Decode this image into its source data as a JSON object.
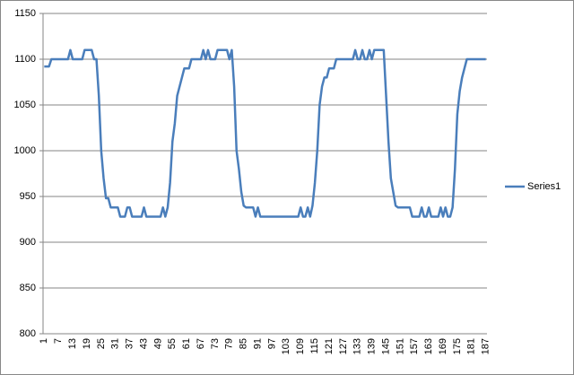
{
  "chart_data": {
    "type": "line",
    "categories": [
      1,
      null,
      null,
      null,
      null,
      null,
      7,
      null,
      null,
      null,
      null,
      null,
      13,
      null,
      null,
      null,
      null,
      null,
      19,
      null,
      null,
      null,
      null,
      null,
      25,
      null,
      null,
      null,
      null,
      null,
      31,
      null,
      null,
      null,
      null,
      null,
      37,
      null,
      null,
      null,
      null,
      null,
      43,
      null,
      null,
      null,
      null,
      null,
      49,
      null,
      null,
      null,
      null,
      null,
      55,
      null,
      null,
      null,
      null,
      null,
      61,
      null,
      null,
      null,
      null,
      null,
      67,
      null,
      null,
      null,
      null,
      null,
      73,
      null,
      null,
      null,
      null,
      null,
      79,
      null,
      null,
      null,
      null,
      null,
      85,
      null,
      null,
      null,
      null,
      null,
      91,
      null,
      null,
      null,
      null,
      null,
      97,
      null,
      null,
      null,
      null,
      null,
      103,
      null,
      null,
      null,
      null,
      null,
      109,
      null,
      null,
      null,
      null,
      null,
      115,
      null,
      null,
      null,
      null,
      null,
      121,
      null,
      null,
      null,
      null,
      null,
      127,
      null,
      null,
      null,
      null,
      null,
      133,
      null,
      null,
      null,
      null,
      null,
      139,
      null,
      null,
      null,
      null,
      null,
      145,
      null,
      null,
      null,
      null,
      null,
      151,
      null,
      null,
      null,
      null,
      null,
      157,
      null,
      null,
      null,
      null,
      null,
      163,
      null,
      null,
      null,
      null,
      null,
      169,
      null,
      null,
      null,
      null,
      null,
      175,
      null,
      null,
      null,
      null,
      null,
      181,
      null,
      null,
      null,
      null,
      null,
      187
    ],
    "series": [
      {
        "name": "Series1",
        "color": "#4a7ebb",
        "values": [
          1092,
          1092,
          1092,
          1100,
          1100,
          1100,
          1100,
          1100,
          1100,
          1100,
          1100,
          1110,
          1100,
          1100,
          1100,
          1100,
          1100,
          1110,
          1110,
          1110,
          1110,
          1100,
          1100,
          1060,
          1000,
          970,
          948,
          948,
          938,
          938,
          938,
          938,
          928,
          928,
          928,
          938,
          938,
          928,
          928,
          928,
          928,
          928,
          938,
          928,
          928,
          928,
          928,
          928,
          928,
          928,
          938,
          928,
          938,
          965,
          1010,
          1030,
          1060,
          1070,
          1080,
          1090,
          1090,
          1090,
          1100,
          1100,
          1100,
          1100,
          1100,
          1110,
          1100,
          1110,
          1100,
          1100,
          1100,
          1110,
          1110,
          1110,
          1110,
          1110,
          1100,
          1110,
          1070,
          1000,
          980,
          955,
          940,
          938,
          938,
          938,
          938,
          928,
          938,
          928,
          928,
          928,
          928,
          928,
          928,
          928,
          928,
          928,
          928,
          928,
          928,
          928,
          928,
          928,
          928,
          928,
          938,
          928,
          928,
          938,
          928,
          940,
          965,
          1000,
          1050,
          1070,
          1080,
          1080,
          1090,
          1090,
          1090,
          1100,
          1100,
          1100,
          1100,
          1100,
          1100,
          1100,
          1100,
          1110,
          1100,
          1100,
          1110,
          1100,
          1100,
          1110,
          1100,
          1110,
          1110,
          1110,
          1110,
          1110,
          1060,
          1010,
          970,
          955,
          940,
          938,
          938,
          938,
          938,
          938,
          938,
          928,
          928,
          928,
          928,
          938,
          928,
          928,
          938,
          928,
          928,
          928,
          928,
          938,
          928,
          938,
          928,
          928,
          938,
          980,
          1040,
          1065,
          1080,
          1090,
          1100,
          1100,
          1100,
          1100,
          1100,
          1100,
          1100,
          1100,
          1100
        ]
      }
    ],
    "ylim": [
      800,
      1150
    ],
    "yticks": [
      800,
      850,
      900,
      950,
      1000,
      1050,
      1100,
      1150
    ],
    "grid": true,
    "legend": "right"
  }
}
